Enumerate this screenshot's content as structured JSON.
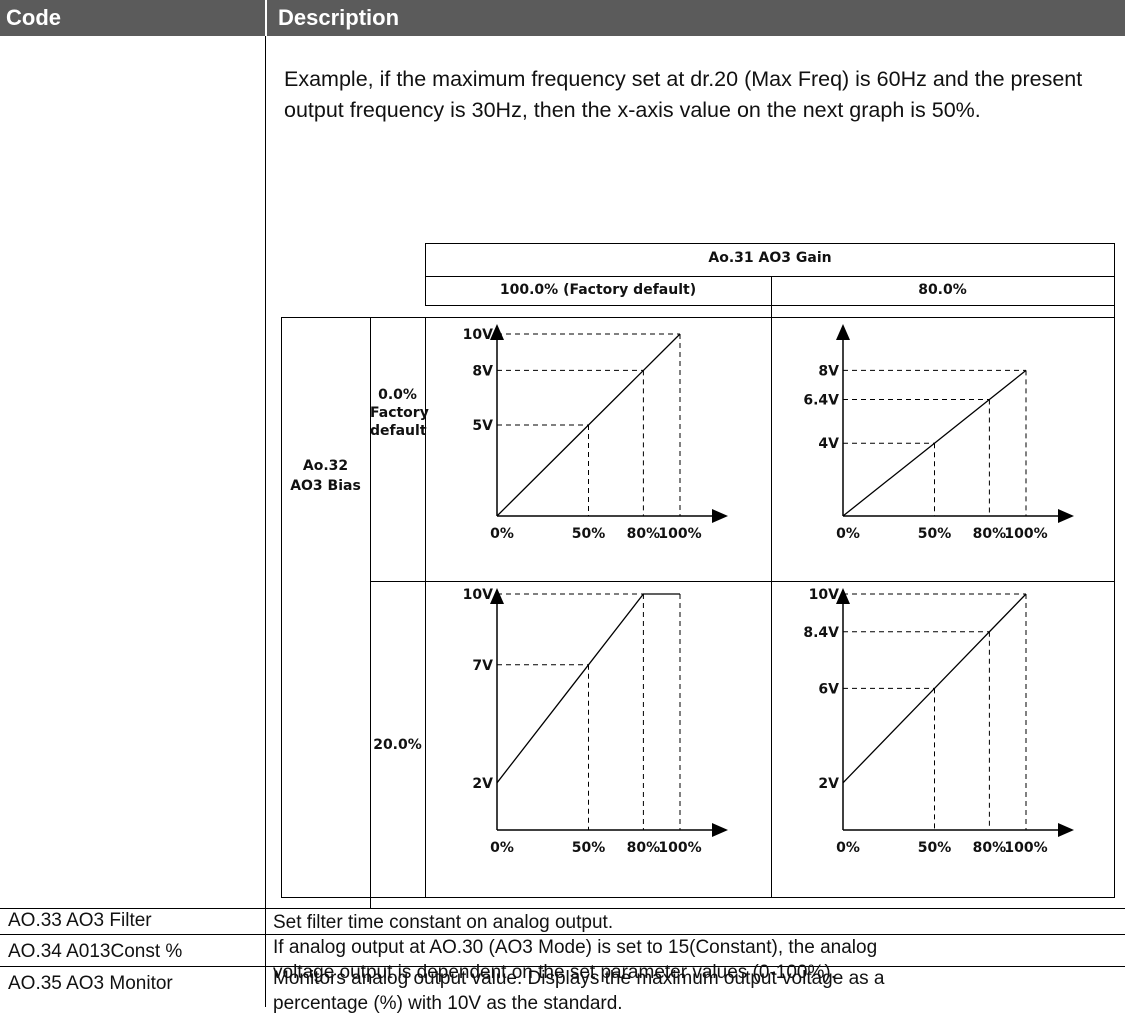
{
  "header": {
    "code": "Code",
    "description": "Description"
  },
  "example_text": "Example, if the maximum frequency set at dr.20 (Max Freq) is 60Hz and the present output frequency is 30Hz, then the x-axis value on the next graph is 50%.",
  "gain_table": {
    "gain_header": "Ao.31 AO3 Gain",
    "gain_values": [
      "100.0% (Factory default)",
      "80.0%"
    ],
    "bias_header_line1": "Ao.32",
    "bias_header_line2": "AO3 Bias",
    "bias_values": [
      {
        "line1": "0.0%",
        "line2": "Factory",
        "line3": "default"
      },
      {
        "line1": "20.0%"
      }
    ],
    "x_ticks": [
      "0%",
      "50%",
      "80%",
      "100%"
    ]
  },
  "chart_data": [
    {
      "type": "line",
      "gain": "100.0%",
      "bias": "0.0%",
      "x": [
        0,
        50,
        80,
        100
      ],
      "y": [
        0,
        5,
        8,
        10
      ],
      "y_tick_labels": [
        "10V",
        "8V",
        "5V"
      ],
      "x_tick_labels": [
        "0%",
        "50%",
        "80%",
        "100%"
      ]
    },
    {
      "type": "line",
      "gain": "80.0%",
      "bias": "0.0%",
      "x": [
        0,
        50,
        80,
        100
      ],
      "y": [
        0,
        4,
        6.4,
        8
      ],
      "y_tick_labels": [
        "8V",
        "6.4V",
        "4V"
      ],
      "x_tick_labels": [
        "0%",
        "50%",
        "80%",
        "100%"
      ]
    },
    {
      "type": "line",
      "gain": "100.0%",
      "bias": "20.0%",
      "x": [
        0,
        50,
        80,
        100
      ],
      "y": [
        2,
        7,
        10,
        10
      ],
      "y_tick_labels": [
        "10V",
        "7V",
        "2V"
      ],
      "x_tick_labels": [
        "0%",
        "50%",
        "80%",
        "100%"
      ]
    },
    {
      "type": "line",
      "gain": "80.0%",
      "bias": "20.0%",
      "x": [
        0,
        50,
        80,
        100
      ],
      "y": [
        2,
        6,
        8.4,
        10
      ],
      "y_tick_labels": [
        "10V",
        "8.4V",
        "6V",
        "2V"
      ],
      "x_tick_labels": [
        "0%",
        "50%",
        "80%",
        "100%"
      ]
    }
  ],
  "rows": [
    {
      "code": "AO.33 AO3 Filter",
      "description": "Set filter time constant on analog output."
    },
    {
      "code": "AO.34 A013Const %",
      "description_line1": "If analog output at AO.30 (AO3 Mode) is set to 15(Constant), the analog",
      "description_line2": "voltage output is dependent on the set parameter values (0-100%)."
    },
    {
      "code": "AO.35 AO3 Monitor",
      "description_line1": "Monitors analog output value. Displays the maximum output voltage as a",
      "description_line2": "percentage (%) with 10V as the standard."
    }
  ]
}
